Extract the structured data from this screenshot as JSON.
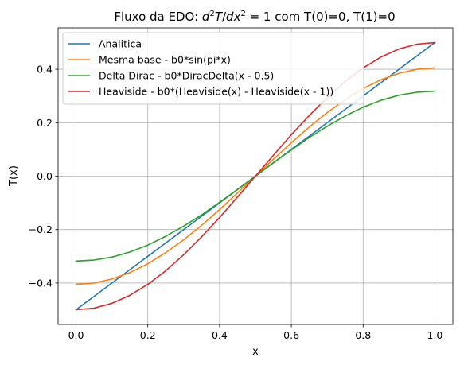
{
  "chart_data": {
    "type": "line",
    "title": {
      "pre": "Fluxo da EDO: ",
      "d1": "d",
      "sup1": "2",
      "T": "T",
      "slash": "/",
      "dx": "dx",
      "sup2": "2",
      "eq": " = 1",
      "post": " com T(0)=0, T(1)=0"
    },
    "xlabel": "x",
    "ylabel": "T(x)",
    "xlim": [
      -0.05,
      1.05
    ],
    "ylim": [
      -0.555,
      0.555
    ],
    "xticks": [
      0.0,
      0.2,
      0.4,
      0.6,
      0.8,
      1.0
    ],
    "xtick_labels": [
      "0.0",
      "0.2",
      "0.4",
      "0.6",
      "0.8",
      "1.0"
    ],
    "yticks": [
      -0.4,
      -0.2,
      0.0,
      0.2,
      0.4
    ],
    "ytick_labels": [
      "−0.4",
      "−0.2",
      "0.0",
      "0.2",
      "0.4"
    ],
    "grid": true,
    "legend_position": "top-left",
    "x": [
      0.0,
      0.05,
      0.1,
      0.15,
      0.2,
      0.25,
      0.3,
      0.35,
      0.4,
      0.45,
      0.5,
      0.55,
      0.6,
      0.65,
      0.7,
      0.75,
      0.8,
      0.85,
      0.9,
      0.95,
      1.0
    ],
    "series": [
      {
        "name": "Analitica",
        "color": "#1f77b4",
        "values": [
          -0.5,
          -0.45,
          -0.4,
          -0.35,
          -0.3,
          -0.25,
          -0.2,
          -0.15,
          -0.1,
          -0.05,
          0.0,
          0.05,
          0.1,
          0.15,
          0.2,
          0.25,
          0.3,
          0.35,
          0.4,
          0.45,
          0.5
        ]
      },
      {
        "name": "Mesma base - b0*sin(pi*x)",
        "color": "#ff7f0e",
        "values": [
          -0.405,
          -0.4,
          -0.385,
          -0.361,
          -0.328,
          -0.286,
          -0.238,
          -0.184,
          -0.125,
          -0.063,
          0.0,
          0.063,
          0.125,
          0.184,
          0.238,
          0.286,
          0.328,
          0.361,
          0.385,
          0.4,
          0.405
        ]
      },
      {
        "name": "Delta Dirac - b0*DiracDelta(x - 0.5)",
        "color": "#2ca02c",
        "values": [
          -0.318,
          -0.314,
          -0.303,
          -0.284,
          -0.258,
          -0.225,
          -0.187,
          -0.145,
          -0.098,
          -0.05,
          0.0,
          0.05,
          0.098,
          0.145,
          0.187,
          0.225,
          0.258,
          0.284,
          0.303,
          0.314,
          0.318
        ]
      },
      {
        "name": "Heaviside - b0*(Heaviside(x) - Heaviside(x - 1))",
        "color": "#d62728",
        "values": [
          -0.5,
          -0.494,
          -0.476,
          -0.446,
          -0.405,
          -0.354,
          -0.294,
          -0.227,
          -0.155,
          -0.078,
          0.0,
          0.078,
          0.155,
          0.227,
          0.294,
          0.354,
          0.405,
          0.446,
          0.476,
          0.494,
          0.5
        ]
      }
    ]
  }
}
